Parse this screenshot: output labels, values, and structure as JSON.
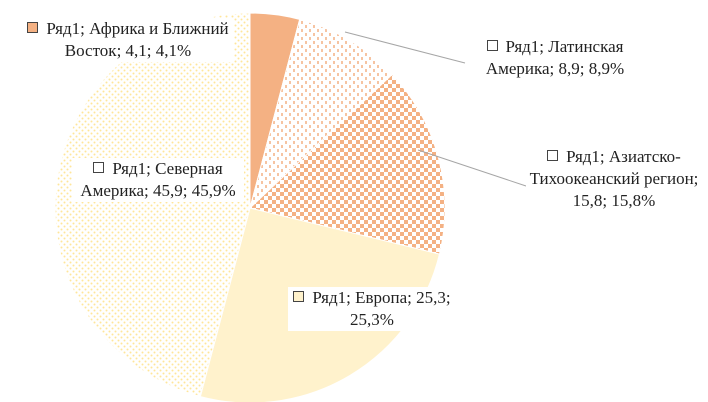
{
  "chart_data": {
    "type": "pie",
    "values": [
      4.1,
      8.9,
      15.8,
      25.3,
      45.9
    ],
    "value_labels": [
      "Ряд1; Африка и Ближний Восток; 4,1; 4,1%",
      "Ряд1; Латинская Америка; 8,9; 8,9%",
      "Ряд1; Азиатско-Тихоокеанский регион; 15,8; 15,8%",
      "Ряд1; Европа; 25,3; 25,3%",
      "Ряд1; Северная Америка; 45,9; 45,9%"
    ],
    "colors": [
      "#f4b183",
      "#f4b183",
      "#f4b183",
      "#fff2cc",
      "#ffe699"
    ],
    "patterns": [
      "solid",
      "dashes",
      "checker",
      "solid",
      "dots"
    ]
  }
}
